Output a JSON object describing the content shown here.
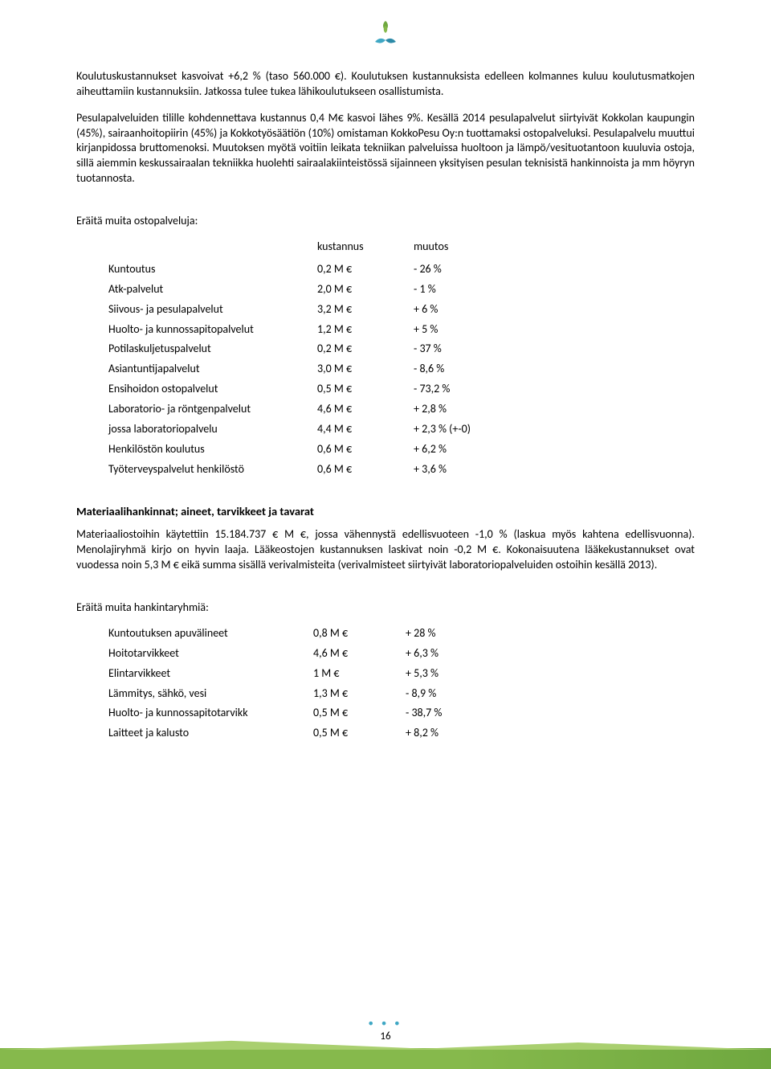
{
  "para1": "Koulutuskustannukset kasvoivat +6,2 % (taso 560.000 €). Koulutuksen kustannuksista edelleen kolmannes kuluu koulutusmatkojen aiheuttamiin kustannuksiin. Jatkossa tulee tukea lähikoulutukseen osallistumista.",
  "para2": "Pesulapalveluiden tilille kohdennettava kustannus 0,4 M€ kasvoi lähes 9%. Kesällä 2014 pesulapalvelut siirtyivät Kokkolan kaupungin (45%), sairaanhoitopiirin (45%) ja Kokkotyösäätiön (10%) omistaman KokkoPesu Oy:n tuottamaksi ostopalveluksi. Pesulapalvelu muuttui kirjanpidossa bruttomenoksi. Muutoksen myötä voitiin leikata tekniikan palveluissa huoltoon ja lämpö/vesituotantoon kuuluvia ostoja, sillä aiemmin keskussairaalan tekniikka huolehti sairaalakiinteistössä sijainneen yksityisen pesulan teknisistä hankinnoista ja mm höyryn tuotannosta.",
  "intro1": "Eräitä muita ostopalveluja:",
  "table1": {
    "headers": {
      "cost": "kustannus",
      "change": "muutos"
    },
    "rows": [
      {
        "label": "Kuntoutus",
        "cost": "0,2 M €",
        "change": "- 26 %"
      },
      {
        "label": "Atk-palvelut",
        "cost": "2,0 M €",
        "change": "- 1 %"
      },
      {
        "label": "Siivous- ja pesulapalvelut",
        "cost": "3,2 M €",
        "change": "+ 6 %"
      },
      {
        "label": "Huolto- ja kunnossapitopalvelut",
        "cost": "1,2 M €",
        "change": "+ 5 %"
      },
      {
        "label": "Potilaskuljetuspalvelut",
        "cost": "0,2 M €",
        "change": "- 37 %"
      },
      {
        "label": "Asiantuntijapalvelut",
        "cost": "3,0 M €",
        "change": "- 8,6 %"
      },
      {
        "label": "Ensihoidon ostopalvelut",
        "cost": "0,5 M €",
        "change": "- 73,2 %"
      },
      {
        "label": "Laboratorio- ja röntgenpalvelut",
        "cost": "4,6 M €",
        "change": "+ 2,8 %"
      },
      {
        "label": "jossa laboratoriopalvelu",
        "cost": "4,4 M €",
        "change": "+ 2,3 % (+-0)"
      },
      {
        "label": "Henkilöstön koulutus",
        "cost": "0,6 M €",
        "change": "+ 6,2 %"
      },
      {
        "label": "Työterveyspalvelut henkilöstö",
        "cost": "0,6 M €",
        "change": "+ 3,6 %"
      }
    ]
  },
  "heading2": "Materiaalihankinnat; aineet, tarvikkeet ja tavarat",
  "para3": "Materiaaliostoihin käytettiin 15.184.737 € M €, jossa vähennystä edellisvuoteen -1,0 % (laskua myös kahtena edellisvuonna). Menolajiryhmä kirjo on hyvin laaja. Lääkeostojen kustannuksen laskivat noin -0,2 M €. Kokonaisuutena lääkekustannukset ovat vuodessa noin 5,3 M € eikä summa sisällä verivalmisteita (verivalmisteet siirtyivät laboratoriopalveluiden ostoihin kesällä 2013).",
  "intro2": "Eräitä muita hankintaryhmiä:",
  "table2": {
    "rows": [
      {
        "label": "Kuntoutuksen apuvälineet",
        "cost": "0,8 M €",
        "change": "+ 28 %"
      },
      {
        "label": "Hoitotarvikkeet",
        "cost": "4,6 M €",
        "change": "+ 6,3 %"
      },
      {
        "label": "Elintarvikkeet",
        "cost": "1 M €",
        "change": "+ 5,3 %"
      },
      {
        "label": "Lämmitys, sähkö, vesi",
        "cost": "1,3 M €",
        "change": "- 8,9 %"
      },
      {
        "label": "Huolto- ja kunnossapitotarvikk",
        "cost": "0,5 M €",
        "change": "- 38,7 %"
      },
      {
        "label": "Laitteet ja kalusto",
        "cost": "0,5 M €",
        "change": "+ 8,2 %"
      }
    ]
  },
  "pageNumber": "16"
}
